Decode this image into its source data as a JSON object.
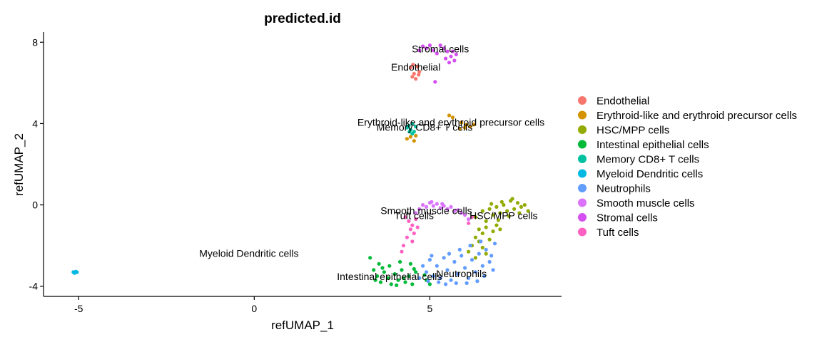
{
  "chart_data": {
    "type": "scatter",
    "title": "predicted.id",
    "xlabel": "refUMAP_1",
    "ylabel": "refUMAP_2",
    "xlim": [
      -6.0,
      8.75
    ],
    "ylim": [
      -4.5,
      8.5
    ],
    "xticks": [
      -5,
      0,
      5
    ],
    "yticks": [
      -4,
      0,
      4,
      8
    ],
    "grid": false,
    "legend_position": "right",
    "series": [
      {
        "name": "Endothelial",
        "color": "#F8766D",
        "label_pos": [
          4.6,
          6.6
        ],
        "points": [
          [
            4.45,
            6.75
          ],
          [
            4.55,
            6.45
          ],
          [
            4.65,
            6.8
          ],
          [
            4.5,
            6.3
          ],
          [
            4.7,
            6.55
          ],
          [
            4.6,
            6.2
          ],
          [
            4.52,
            6.9
          ],
          [
            4.68,
            6.4
          ]
        ]
      },
      {
        "name": "Erythroid-like and erythroid precursor cells",
        "color": "#D39200",
        "label_pos": [
          5.6,
          3.9
        ],
        "points": [
          [
            5.55,
            4.4
          ],
          [
            5.65,
            4.3
          ],
          [
            5.9,
            4.05
          ],
          [
            6.05,
            3.95
          ],
          [
            6.15,
            3.85
          ],
          [
            5.85,
            3.75
          ],
          [
            6.25,
            3.95
          ],
          [
            6.0,
            3.8
          ],
          [
            4.35,
            3.25
          ],
          [
            4.45,
            3.35
          ],
          [
            4.55,
            3.15
          ],
          [
            4.6,
            3.4
          ]
        ]
      },
      {
        "name": "HSC/MPP cells",
        "color": "#93AA00",
        "label_pos": [
          7.1,
          -0.7
        ],
        "points": [
          [
            6.3,
            -0.6
          ],
          [
            6.5,
            -0.3
          ],
          [
            6.6,
            -0.8
          ],
          [
            6.7,
            -0.2
          ],
          [
            6.8,
            -0.5
          ],
          [
            6.9,
            -0.1
          ],
          [
            7.0,
            -0.4
          ],
          [
            7.1,
            0.0
          ],
          [
            7.2,
            -0.3
          ],
          [
            7.3,
            0.2
          ],
          [
            7.4,
            -0.2
          ],
          [
            7.5,
            0.1
          ],
          [
            7.6,
            -0.1
          ],
          [
            7.7,
            0.0
          ],
          [
            7.8,
            -0.3
          ],
          [
            7.05,
            0.15
          ],
          [
            7.25,
            -0.55
          ],
          [
            6.95,
            -0.75
          ],
          [
            6.6,
            -1.1
          ],
          [
            6.5,
            -1.4
          ],
          [
            6.4,
            -1.8
          ],
          [
            6.3,
            -1.6
          ],
          [
            6.2,
            -2.0
          ],
          [
            6.1,
            -2.3
          ],
          [
            6.5,
            -2.1
          ],
          [
            6.7,
            -1.7
          ],
          [
            6.8,
            -1.3
          ],
          [
            6.6,
            -2.4
          ],
          [
            6.9,
            -1.0
          ],
          [
            7.0,
            -1.2
          ],
          [
            6.4,
            -1.2
          ],
          [
            6.3,
            -2.6
          ],
          [
            7.55,
            -0.4
          ],
          [
            6.75,
            0.05
          ],
          [
            7.35,
            0.3
          ]
        ]
      },
      {
        "name": "Intestinal epithelial cells",
        "color": "#00BA38",
        "label_pos": [
          3.85,
          -3.7
        ],
        "points": [
          [
            3.3,
            -2.6
          ],
          [
            3.4,
            -3.2
          ],
          [
            3.5,
            -3.5
          ],
          [
            3.6,
            -3.8
          ],
          [
            3.7,
            -3.3
          ],
          [
            3.8,
            -3.6
          ],
          [
            3.9,
            -3.9
          ],
          [
            4.0,
            -3.4
          ],
          [
            4.1,
            -3.7
          ],
          [
            4.2,
            -3.2
          ],
          [
            4.3,
            -3.8
          ],
          [
            4.4,
            -3.5
          ],
          [
            4.5,
            -3.9
          ],
          [
            4.6,
            -3.3
          ],
          [
            4.7,
            -3.6
          ],
          [
            3.55,
            -2.9
          ],
          [
            3.85,
            -3.0
          ],
          [
            4.15,
            -2.8
          ],
          [
            4.45,
            -2.9
          ],
          [
            3.65,
            -3.1
          ],
          [
            4.05,
            -3.95
          ],
          [
            4.9,
            -3.7
          ],
          [
            5.0,
            -3.9
          ],
          [
            4.25,
            -3.6
          ],
          [
            3.45,
            -3.7
          ],
          [
            4.55,
            -3.15
          ],
          [
            4.85,
            -3.45
          ]
        ]
      },
      {
        "name": "Memory CD8+ T cells",
        "color": "#00C19F",
        "label_pos": [
          4.85,
          3.65
        ],
        "points": [
          [
            4.4,
            3.9
          ],
          [
            4.5,
            4.0
          ],
          [
            4.45,
            3.7
          ],
          [
            4.55,
            3.6
          ],
          [
            4.35,
            3.8
          ],
          [
            4.5,
            3.5
          ],
          [
            4.6,
            3.85
          ],
          [
            4.42,
            3.6
          ]
        ]
      },
      {
        "name": "Myeloid Dendritic cells",
        "color": "#00B9E3",
        "label_pos": [
          -0.15,
          -2.55
        ],
        "points": [
          [
            -5.15,
            -3.3
          ],
          [
            -5.1,
            -3.32
          ],
          [
            -5.05,
            -3.31
          ],
          [
            -5.12,
            -3.35
          ],
          [
            -5.08,
            -3.28
          ]
        ]
      },
      {
        "name": "Neutrophils",
        "color": "#619CFF",
        "label_pos": [
          5.9,
          -3.55
        ],
        "points": [
          [
            4.8,
            -3.0
          ],
          [
            4.9,
            -3.3
          ],
          [
            5.0,
            -2.7
          ],
          [
            5.1,
            -3.5
          ],
          [
            5.2,
            -3.0
          ],
          [
            5.3,
            -3.6
          ],
          [
            5.4,
            -2.6
          ],
          [
            5.5,
            -3.2
          ],
          [
            5.6,
            -3.7
          ],
          [
            5.7,
            -2.8
          ],
          [
            5.8,
            -3.4
          ],
          [
            5.9,
            -2.5
          ],
          [
            6.0,
            -3.1
          ],
          [
            6.1,
            -3.6
          ],
          [
            6.2,
            -2.7
          ],
          [
            6.3,
            -3.3
          ],
          [
            6.4,
            -2.4
          ],
          [
            6.5,
            -3.0
          ],
          [
            6.6,
            -2.2
          ],
          [
            6.7,
            -2.8
          ],
          [
            6.8,
            -3.2
          ],
          [
            5.25,
            -3.8
          ],
          [
            5.55,
            -2.4
          ],
          [
            5.85,
            -2.2
          ],
          [
            6.15,
            -2.0
          ],
          [
            6.45,
            -1.8
          ],
          [
            6.75,
            -2.5
          ],
          [
            6.85,
            -1.9
          ],
          [
            4.7,
            -3.6
          ],
          [
            5.05,
            -2.5
          ],
          [
            6.05,
            -3.85
          ],
          [
            5.45,
            -3.9
          ],
          [
            6.35,
            -3.75
          ],
          [
            6.55,
            -3.5
          ],
          [
            4.95,
            -3.75
          ],
          [
            5.75,
            -3.85
          ]
        ]
      },
      {
        "name": "Smooth muscle cells",
        "color": "#DB72FB",
        "label_pos": [
          4.9,
          -0.45
        ],
        "points": [
          [
            4.8,
            0.0
          ],
          [
            4.9,
            -0.1
          ],
          [
            5.0,
            0.1
          ],
          [
            5.1,
            -0.05
          ],
          [
            5.2,
            0.05
          ],
          [
            5.3,
            -0.15
          ],
          [
            5.4,
            -0.05
          ],
          [
            5.5,
            -0.2
          ],
          [
            5.6,
            -0.1
          ],
          [
            5.7,
            -0.3
          ],
          [
            5.8,
            -0.25
          ],
          [
            6.0,
            -0.5
          ],
          [
            6.1,
            -0.7
          ],
          [
            4.6,
            -0.4
          ],
          [
            4.7,
            -0.2
          ],
          [
            5.05,
            0.15
          ],
          [
            5.35,
            0.05
          ],
          [
            5.9,
            -0.4
          ]
        ]
      },
      {
        "name": "Stromal cells",
        "color": "#D54EF0",
        "label_pos": [
          5.3,
          7.5
        ],
        "points": [
          [
            4.7,
            7.6
          ],
          [
            4.8,
            7.8
          ],
          [
            4.9,
            7.7
          ],
          [
            5.0,
            7.85
          ],
          [
            5.1,
            7.6
          ],
          [
            5.2,
            7.45
          ],
          [
            5.4,
            7.7
          ],
          [
            5.5,
            7.55
          ],
          [
            5.6,
            7.3
          ],
          [
            5.7,
            7.1
          ],
          [
            5.65,
            7.55
          ],
          [
            5.55,
            7.0
          ],
          [
            5.75,
            7.4
          ],
          [
            5.3,
            7.85
          ],
          [
            5.15,
            6.05
          ],
          [
            5.45,
            7.2
          ]
        ]
      },
      {
        "name": "Tuft cells",
        "color": "#FF61C3",
        "label_pos": [
          4.55,
          -0.7
        ],
        "points": [
          [
            4.4,
            -0.8
          ],
          [
            4.5,
            -1.0
          ],
          [
            4.6,
            -0.7
          ],
          [
            4.45,
            -1.2
          ],
          [
            4.55,
            -1.4
          ],
          [
            4.35,
            -1.6
          ],
          [
            4.25,
            -2.0
          ],
          [
            4.2,
            -2.3
          ],
          [
            4.3,
            -0.6
          ],
          [
            4.65,
            -1.1
          ],
          [
            6.1,
            -0.9
          ],
          [
            6.2,
            -0.6
          ],
          [
            4.5,
            -1.8
          ]
        ]
      }
    ]
  }
}
